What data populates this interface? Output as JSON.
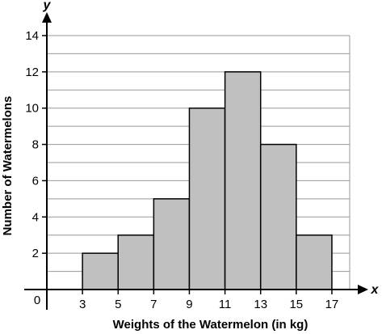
{
  "chart_data": {
    "type": "bar",
    "subtype": "histogram",
    "bin_edges": [
      3,
      5,
      7,
      9,
      11,
      13,
      15,
      17
    ],
    "values": [
      2,
      3,
      5,
      10,
      12,
      8,
      3
    ],
    "xlabel": "Weights of the Watermelon (in kg)",
    "ylabel": "Number of Watermelons",
    "x_axis_letter": "x",
    "y_axis_letter": "y",
    "origin_label": "0",
    "x_ticks": [
      "3",
      "5",
      "7",
      "9",
      "11",
      "13",
      "15",
      "17"
    ],
    "y_ticks": [
      "2",
      "4",
      "6",
      "8",
      "10",
      "12",
      "14"
    ],
    "ylim": [
      0,
      14
    ],
    "xlim": [
      1,
      18
    ],
    "grid": "horizontal",
    "bar_color": "#c0c0c0",
    "bar_edge_color": "#000000",
    "grid_color": "#999999"
  }
}
